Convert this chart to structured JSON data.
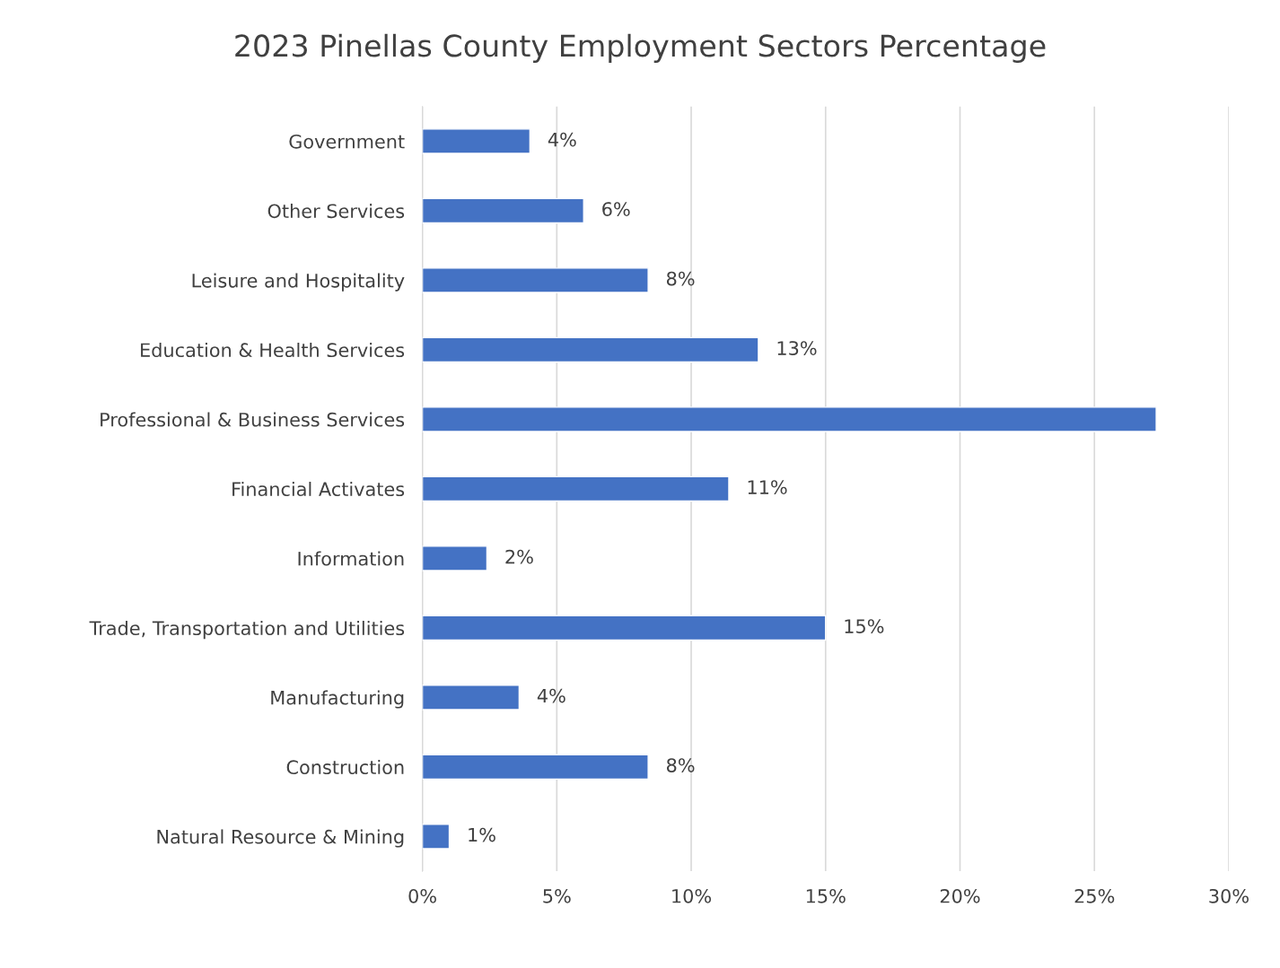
{
  "chart_data": {
    "type": "bar",
    "orientation": "horizontal",
    "title": "2023 Pinellas County Employment Sectors Percentage",
    "categories": [
      "Government",
      "Other Services",
      "Leisure and Hospitality",
      "Education & Health Services",
      "Professional & Business Services",
      "Financial Activates",
      "Information",
      "Trade, Transportation and Utilities",
      "Manufacturing",
      "Construction",
      "Natural Resource & Mining"
    ],
    "values": [
      4.0,
      6.0,
      8.4,
      12.5,
      27.3,
      11.4,
      2.4,
      15.0,
      3.6,
      8.4,
      1.0
    ],
    "value_labels": [
      "4%",
      "6%",
      "8%",
      "13%",
      null,
      "11%",
      "2%",
      "15%",
      "4%",
      "8%",
      "1%"
    ],
    "color": "#4472c4",
    "xlim": [
      0,
      30
    ],
    "xticks": [
      {
        "value": 0,
        "label": "0%"
      },
      {
        "value": 5,
        "label": "5%"
      },
      {
        "value": 10,
        "label": "10%"
      },
      {
        "value": 15,
        "label": "15%"
      },
      {
        "value": 20,
        "label": "20%"
      },
      {
        "value": 25,
        "label": "25%"
      },
      {
        "value": 30,
        "label": "30%"
      }
    ],
    "grid": "x",
    "legend": false
  }
}
